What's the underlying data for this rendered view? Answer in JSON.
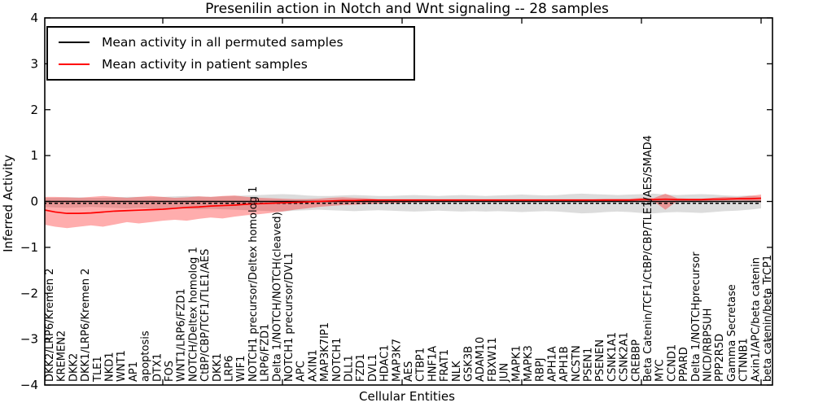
{
  "title": "Presenilin action in Notch and Wnt signaling -- 28 samples",
  "legend": {
    "items": [
      {
        "label": "Mean activity in all permuted samples",
        "color": "#000000"
      },
      {
        "label": "Mean activity in patient samples",
        "color": "#ff0000"
      }
    ]
  },
  "axes": {
    "xlabel": "Cellular Entities",
    "ylabel": "Inferred Activity"
  },
  "chart_data": {
    "type": "line",
    "title": "Presenilin action in Notch and Wnt signaling -- 28 samples",
    "xlabel": "Cellular Entities",
    "ylabel": "Inferred Activity",
    "ylim": [
      -4,
      4
    ],
    "yticks": [
      4,
      3,
      2,
      1,
      0,
      -1,
      -2,
      -3,
      -4
    ],
    "ytick_labels": [
      "4",
      "3",
      "2",
      "1",
      "0",
      "−1",
      "−2",
      "−3",
      "−4"
    ],
    "x_major_ticks": [
      0,
      10,
      20,
      30,
      40,
      50,
      60
    ],
    "grid": false,
    "legend_position": "upper left",
    "categories": [
      "DKK2/LRP6/Kremen 2",
      "KREMEN2",
      "DKK2",
      "DKK1/LRP6/Kremen 2",
      "TLE1",
      "NKD1",
      "WNT1",
      "AP1",
      "apoptosis",
      "DTX1",
      "FOS",
      "WNT1/LRP6/FZD1",
      "NOTCH/Deltex homolog 1",
      "CtBP/CBP/TCF1/TLE1/AES",
      "DKK1",
      "LRP6",
      "WIF1",
      "NOTCH1 precursor/Deltex homolog 1",
      "LRP6/FZD1",
      "Delta 1/NOTCH/NOTCH(cleaved)",
      "NOTCH1 precursor/DVL1",
      "APC",
      "AXIN1",
      "MAP3K7IP1",
      "NOTCH1",
      "DLL1",
      "FZD1",
      "DVL1",
      "HDAC1",
      "MAP3K7",
      "AES",
      "CTBP1",
      "HNF1A",
      "FRAT1",
      "NLK",
      "GSK3B",
      "ADAM10",
      "FBXW11",
      "JUN",
      "MAPK1",
      "MAPK3",
      "RBPJ",
      "APH1A",
      "APH1B",
      "NCSTN",
      "PSEN1",
      "PSENEN",
      "CSNK1A1",
      "CSNK2A1",
      "CREBBP",
      "Beta Catenin/TCF1/CtBP/CBP/TLE1/AES/SMAD4",
      "MYC",
      "CCND1",
      "PPARD",
      "Delta 1/NOTCHprecursor",
      "NICD/RBPSUH",
      "PPP2R5D",
      "Gamma Secretase",
      "CTNNB1",
      "Axin1/APC/beta catenin",
      "beta catenin/beta TrCP1"
    ],
    "series": [
      {
        "name": "Mean activity in all permuted samples",
        "color": "#000000",
        "style": "solid",
        "constant_value": 0.0
      },
      {
        "name": "baseline (dashed)",
        "color": "#000000",
        "style": "dashed",
        "constant_value": -0.04
      },
      {
        "name": "Mean activity in patient samples",
        "color": "#ff0000",
        "style": "solid",
        "values": [
          -0.18,
          -0.23,
          -0.26,
          -0.26,
          -0.25,
          -0.23,
          -0.21,
          -0.2,
          -0.19,
          -0.18,
          -0.17,
          -0.15,
          -0.13,
          -0.12,
          -0.1,
          -0.09,
          -0.08,
          -0.06,
          -0.05,
          -0.04,
          -0.03,
          -0.02,
          -0.01,
          0.0,
          0.01,
          0.02,
          0.02,
          0.03,
          0.03,
          0.03,
          0.03,
          0.03,
          0.03,
          0.03,
          0.03,
          0.03,
          0.03,
          0.03,
          0.03,
          0.03,
          0.03,
          0.03,
          0.03,
          0.03,
          0.03,
          0.03,
          0.03,
          0.03,
          0.03,
          0.03,
          0.04,
          0.04,
          0.05,
          0.04,
          0.04,
          0.04,
          0.05,
          0.05,
          0.06,
          0.06,
          0.07
        ]
      }
    ],
    "bands": [
      {
        "name": "permuted samples range",
        "color": "#808080",
        "opacity": 0.28,
        "upper": [
          0.08,
          0.08,
          0.09,
          0.09,
          0.08,
          0.08,
          0.09,
          0.1,
          0.1,
          0.09,
          0.1,
          0.11,
          0.12,
          0.11,
          0.1,
          0.11,
          0.12,
          0.13,
          0.14,
          0.15,
          0.16,
          0.15,
          0.13,
          0.12,
          0.12,
          0.13,
          0.14,
          0.13,
          0.12,
          0.12,
          0.13,
          0.14,
          0.13,
          0.12,
          0.13,
          0.14,
          0.13,
          0.12,
          0.13,
          0.14,
          0.15,
          0.14,
          0.13,
          0.14,
          0.16,
          0.17,
          0.16,
          0.15,
          0.14,
          0.15,
          0.16,
          0.17,
          0.15,
          0.14,
          0.15,
          0.16,
          0.15,
          0.13,
          0.12,
          0.13,
          0.1
        ],
        "lower": [
          -0.12,
          -0.13,
          -0.14,
          -0.13,
          -0.12,
          -0.13,
          -0.14,
          -0.15,
          -0.14,
          -0.15,
          -0.16,
          -0.15,
          -0.16,
          -0.17,
          -0.16,
          -0.17,
          -0.18,
          -0.19,
          -0.2,
          -0.21,
          -0.22,
          -0.2,
          -0.19,
          -0.18,
          -0.19,
          -0.2,
          -0.21,
          -0.2,
          -0.19,
          -0.2,
          -0.21,
          -0.22,
          -0.21,
          -0.2,
          -0.21,
          -0.22,
          -0.21,
          -0.22,
          -0.21,
          -0.22,
          -0.23,
          -0.22,
          -0.21,
          -0.22,
          -0.24,
          -0.26,
          -0.25,
          -0.23,
          -0.22,
          -0.23,
          -0.25,
          -0.26,
          -0.24,
          -0.23,
          -0.24,
          -0.25,
          -0.23,
          -0.21,
          -0.2,
          -0.18,
          -0.15
        ]
      },
      {
        "name": "patient samples range",
        "color": "#ff0000",
        "opacity": 0.32,
        "upper": [
          0.1,
          0.1,
          0.09,
          0.08,
          0.1,
          0.12,
          0.1,
          0.08,
          0.1,
          0.12,
          0.1,
          0.08,
          0.09,
          0.11,
          0.1,
          0.12,
          0.13,
          0.1,
          0.08,
          0.07,
          0.06,
          0.05,
          0.05,
          0.06,
          0.08,
          0.09,
          0.08,
          0.07,
          0.05,
          0.05,
          0.05,
          0.05,
          0.05,
          0.05,
          0.05,
          0.05,
          0.05,
          0.05,
          0.05,
          0.05,
          0.05,
          0.05,
          0.05,
          0.05,
          0.05,
          0.05,
          0.05,
          0.06,
          0.06,
          0.06,
          0.08,
          0.07,
          0.17,
          0.07,
          0.06,
          0.06,
          0.08,
          0.1,
          0.09,
          0.12,
          0.15
        ],
        "lower": [
          -0.5,
          -0.55,
          -0.58,
          -0.55,
          -0.52,
          -0.55,
          -0.5,
          -0.45,
          -0.48,
          -0.45,
          -0.42,
          -0.4,
          -0.42,
          -0.38,
          -0.35,
          -0.37,
          -0.33,
          -0.3,
          -0.28,
          -0.25,
          -0.22,
          -0.18,
          -0.15,
          -0.12,
          -0.1,
          -0.08,
          -0.07,
          -0.06,
          -0.05,
          -0.04,
          -0.03,
          -0.02,
          -0.02,
          -0.02,
          -0.01,
          -0.01,
          -0.01,
          -0.01,
          -0.01,
          -0.01,
          -0.01,
          -0.01,
          0.0,
          0.0,
          0.0,
          0.0,
          0.0,
          0.0,
          0.01,
          0.01,
          0.01,
          0.01,
          -0.18,
          0.01,
          0.01,
          0.01,
          0.01,
          0.02,
          0.02,
          0.01,
          -0.02
        ]
      }
    ]
  }
}
